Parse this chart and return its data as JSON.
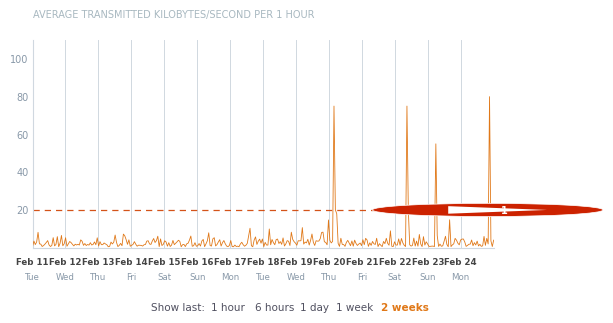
{
  "title": "AVERAGE TRANSMITTED KILOBYTES/SECOND PER 1 HOUR",
  "title_color": "#a8b8c0",
  "title_fontsize": 7.0,
  "background_color": "#ffffff",
  "plot_bg_color": "#ffffff",
  "ylim": [
    0,
    110
  ],
  "yticks": [
    20,
    40,
    60,
    80,
    100
  ],
  "alarm_line": 20,
  "alarm_color": "#d04000",
  "line_color": "#e07818",
  "x_dates_top": [
    "Feb 11",
    "Feb 12",
    "Feb 13",
    "Feb 14",
    "Feb 15",
    "Feb 16",
    "Feb 17",
    "Feb 18",
    "Feb 19",
    "Feb 20",
    "Feb 21",
    "Feb 22",
    "Feb 23",
    "Feb 24"
  ],
  "x_dates_bot": [
    "Tue",
    "Wed",
    "Thu",
    "Fri",
    "Sat",
    "Sun",
    "Mon",
    "Tue",
    "Wed",
    "Thu",
    "Fri",
    "Sat",
    "Sun",
    "Mon"
  ],
  "grid_color": "#d0d8e0",
  "axis_color": "#8898a8",
  "tick_label_color": "#444444",
  "show_last_label": "Show last:",
  "show_last_options": [
    "1 hour",
    "6 hours",
    "1 day",
    "1 week",
    "2 weeks"
  ],
  "show_last_active": "2 weeks",
  "show_last_active_color": "#e07818",
  "show_last_normal_color": "#505060",
  "alarm_badge_color": "#cc2200",
  "alarm_badge_text": "1",
  "spikes": [
    {
      "day": 9,
      "hour": 3,
      "value": 75
    },
    {
      "day": 9,
      "hour": 4,
      "value": 20
    },
    {
      "day": 9,
      "hour": 5,
      "value": 18
    },
    {
      "day": 11,
      "hour": 8,
      "value": 75
    },
    {
      "day": 11,
      "hour": 9,
      "value": 20
    },
    {
      "day": 12,
      "hour": 5,
      "value": 55
    },
    {
      "day": 13,
      "hour": 20,
      "value": 80
    }
  ]
}
